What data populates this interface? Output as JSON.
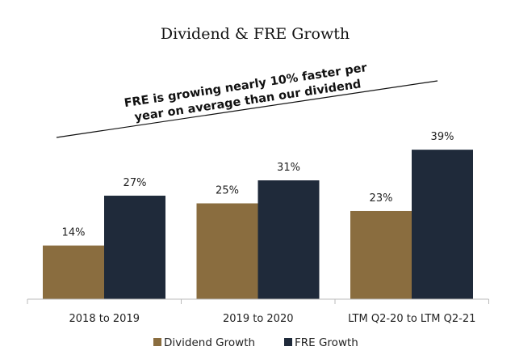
{
  "chart_data": {
    "type": "bar",
    "title": "Dividend & FRE Growth",
    "categories": [
      "2018 to 2019",
      "2019 to 2020",
      "LTM Q2-20 to LTM Q2-21"
    ],
    "series": [
      {
        "name": "Dividend Growth",
        "values": [
          14,
          25,
          23
        ],
        "labels": [
          "14%",
          "25%",
          "23%"
        ],
        "color": "#8A6D3F"
      },
      {
        "name": "FRE Growth",
        "values": [
          27,
          31,
          39
        ],
        "labels": [
          "27%",
          "31%",
          "39%"
        ],
        "color": "#1F2A3A"
      }
    ],
    "ylim": [
      0,
      39
    ],
    "grid": false,
    "legend": "bottom",
    "annotation": {
      "line1": "FRE is growing nearly 10% faster per",
      "line2": "year on average than our dividend"
    }
  }
}
